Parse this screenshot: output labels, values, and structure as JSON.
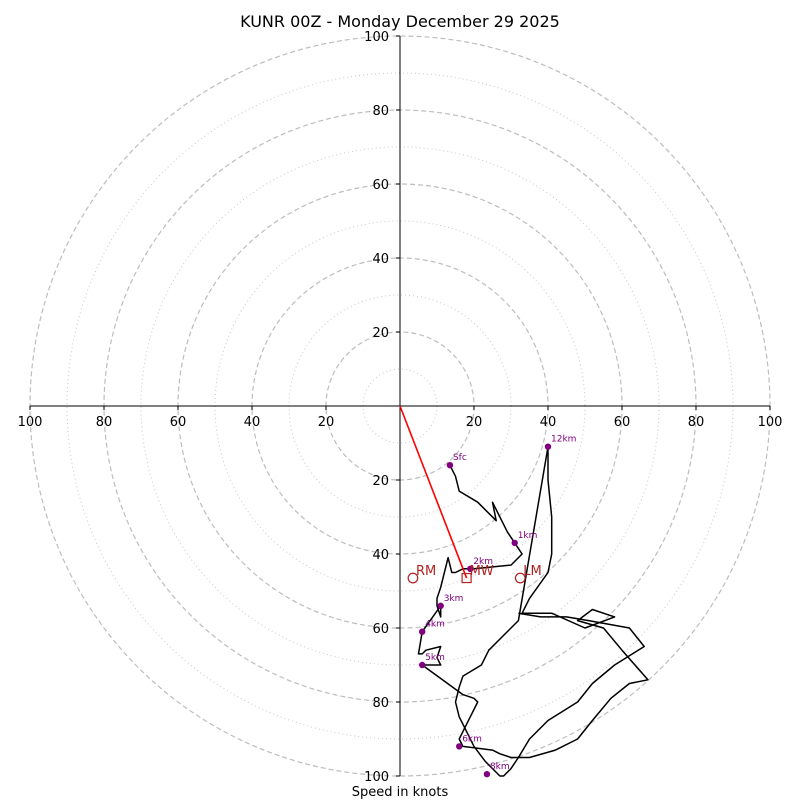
{
  "chart_data": {
    "type": "scatter",
    "subtype": "hodograph",
    "title": "KUNR 00Z - Monday December 29 2025",
    "xlabel": "Speed in knots",
    "ylabel": "",
    "xlim": [
      -100,
      100
    ],
    "ylim": [
      -100,
      100
    ],
    "ring_major": [
      20,
      40,
      60,
      80,
      100
    ],
    "ring_minor": [
      10,
      30,
      50,
      70,
      90
    ],
    "x_ticks": [
      {
        "value": -100,
        "label": "100"
      },
      {
        "value": -80,
        "label": "80"
      },
      {
        "value": -60,
        "label": "60"
      },
      {
        "value": -40,
        "label": "40"
      },
      {
        "value": -20,
        "label": "20"
      },
      {
        "value": 20,
        "label": "20"
      },
      {
        "value": 40,
        "label": "40"
      },
      {
        "value": 60,
        "label": "60"
      },
      {
        "value": 80,
        "label": "80"
      },
      {
        "value": 100,
        "label": "100"
      }
    ],
    "y_ticks": [
      {
        "value": 100,
        "label": "100"
      },
      {
        "value": 80,
        "label": "80"
      },
      {
        "value": 60,
        "label": "60"
      },
      {
        "value": 40,
        "label": "40"
      },
      {
        "value": 20,
        "label": "20"
      },
      {
        "value": -20,
        "label": "20"
      },
      {
        "value": -40,
        "label": "40"
      },
      {
        "value": -60,
        "label": "60"
      },
      {
        "value": -80,
        "label": "80"
      },
      {
        "value": -100,
        "label": "100"
      }
    ],
    "hodograph": {
      "name": "Wind profile",
      "color": "#000000",
      "x": [
        13.5,
        15,
        16,
        21,
        26,
        25,
        29,
        31,
        33,
        30,
        20,
        17,
        15,
        14,
        13,
        11,
        10,
        10,
        11,
        11,
        6,
        5,
        6,
        7,
        11,
        10,
        11,
        7,
        6,
        17,
        20,
        21,
        18,
        16,
        17,
        25,
        27,
        30,
        35,
        42,
        48,
        52,
        57,
        62,
        67,
        60,
        55,
        48,
        52,
        58,
        50,
        41,
        33,
        35,
        40,
        41,
        41,
        40,
        40,
        32,
        28,
        24,
        22,
        17,
        16,
        15,
        16,
        18,
        20,
        23,
        27,
        28,
        30,
        32,
        35,
        40,
        48,
        52,
        58,
        66,
        62,
        51,
        45,
        38,
        32
      ],
      "y": [
        -16,
        -19,
        -23,
        -26,
        -31,
        -26,
        -34,
        -37,
        -40,
        -43,
        -44,
        -44,
        -45,
        -45,
        -41,
        -49,
        -52,
        -54,
        -57,
        -54,
        -61,
        -67,
        -67,
        -66,
        -65,
        -68,
        -70,
        -70,
        -70,
        -78,
        -79,
        -80,
        -86,
        -90,
        -92,
        -93,
        -94,
        -95,
        -95,
        -93,
        -90,
        -85,
        -79,
        -75,
        -74,
        -66,
        -60,
        -58,
        -55,
        -57,
        -60,
        -56,
        -56,
        -52,
        -45,
        -40,
        -30,
        -20,
        -11,
        -58,
        -62,
        -66,
        -70,
        -73,
        -76,
        -80,
        -84,
        -88,
        -92,
        -96,
        -100,
        -100,
        -98,
        -95,
        -90,
        -85,
        -80,
        -75,
        -70,
        -65,
        -60,
        -58,
        -57,
        -57,
        -56
      ]
    },
    "height_markers": [
      {
        "label": "Sfc",
        "x": 13.5,
        "y": -16
      },
      {
        "label": "1km",
        "x": 31,
        "y": -37
      },
      {
        "label": "2km",
        "x": 19,
        "y": -44
      },
      {
        "label": "3km",
        "x": 11,
        "y": -54
      },
      {
        "label": "4km",
        "x": 6,
        "y": -61
      },
      {
        "label": "5km",
        "x": 6,
        "y": -70
      },
      {
        "label": "6km",
        "x": 16,
        "y": -92
      },
      {
        "label": "8km",
        "x": 23.5,
        "y": -99.5
      },
      {
        "label": "12km",
        "x": 40,
        "y": -11
      }
    ],
    "marker_color": "#800080",
    "storm_motion": [
      {
        "label": "RM",
        "x": 3.5,
        "y": -46.5,
        "shape": "circle"
      },
      {
        "label": "MW",
        "x": 18,
        "y": -46.5,
        "shape": "square"
      },
      {
        "label": "LM",
        "x": 32.5,
        "y": -46.5,
        "shape": "circle"
      }
    ],
    "storm_motion_color": "#b22222",
    "vector": {
      "from": [
        0,
        0
      ],
      "to": [
        18,
        -46.5
      ],
      "color": "#ff0000"
    }
  }
}
